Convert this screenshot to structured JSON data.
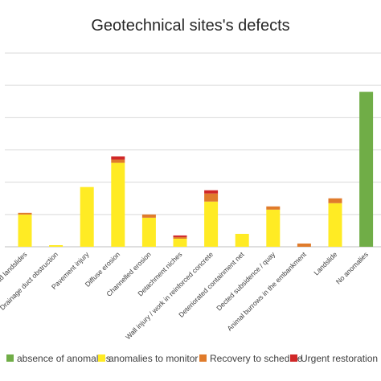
{
  "chart_data": {
    "type": "bar",
    "stacked": true,
    "title": "Geotechnical sites's defects",
    "xlabel": "",
    "ylabel": "",
    "ylim": [
      0,
      12
    ],
    "grid": true,
    "legend_position": "bottom",
    "categories": [
      "Road landslides",
      "Drainage duct obstruction",
      "Pavement injury",
      "Diffuse erosion",
      "Channelled erosion",
      "Detachment niches",
      "Wall injury / work in reinforced concrete",
      "Deteriorated containment net",
      "Dected subsidence / quay",
      "Animal burrows in the embankment",
      "Landslide",
      "No anomalies"
    ],
    "series": [
      {
        "name": "absence of anomalies",
        "color": "#70AD47",
        "values": [
          0,
          0,
          0,
          0,
          0,
          0,
          0,
          0,
          0,
          0,
          0,
          9.6
        ]
      },
      {
        "name": "anomalies to monitor",
        "color": "#FFEB24",
        "values": [
          2.0,
          0.1,
          3.7,
          5.2,
          1.8,
          0.5,
          2.8,
          0.8,
          2.3,
          0,
          2.7,
          0
        ]
      },
      {
        "name": "Recovery to schedule",
        "color": "#E07B2B",
        "values": [
          0.1,
          0,
          0,
          0.2,
          0.2,
          0.1,
          0.5,
          0,
          0.2,
          0.2,
          0.3,
          0
        ]
      },
      {
        "name": "Urgent restoration",
        "color": "#D02828",
        "values": [
          0,
          0,
          0,
          0.2,
          0,
          0.1,
          0.2,
          0,
          0,
          0,
          0,
          0
        ]
      }
    ]
  }
}
